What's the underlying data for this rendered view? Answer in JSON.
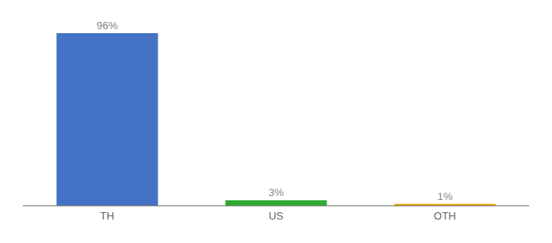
{
  "chart_data": {
    "type": "bar",
    "categories": [
      "TH",
      "US",
      "OTH"
    ],
    "values": [
      96,
      3,
      1
    ],
    "value_labels": [
      "96%",
      "3%",
      "1%"
    ],
    "colors": [
      "#4472c4",
      "#2eaa2e",
      "#f0a500"
    ],
    "ylim": [
      0,
      100
    ],
    "data_labels": true,
    "tick_labels": "x",
    "grid": false
  }
}
